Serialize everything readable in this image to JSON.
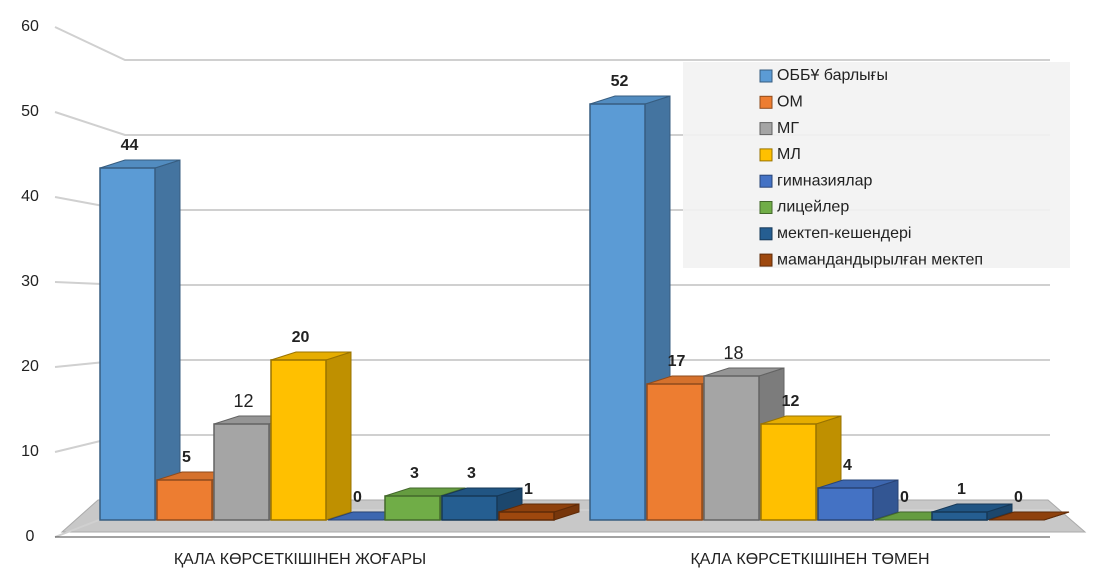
{
  "chart_data": {
    "type": "bar3d",
    "categories": [
      "ҚАЛА КӨРСЕТКІШІНЕН ЖОҒАРЫ",
      "ҚАЛА КӨРСЕТКІШІНЕН ТӨМЕН"
    ],
    "series": [
      {
        "name": "ОББҰ барлығы",
        "color": "#5b9bd5",
        "values": [
          44,
          52
        ]
      },
      {
        "name": "ОМ",
        "color": "#ed7d31",
        "values": [
          5,
          17
        ]
      },
      {
        "name": "МГ",
        "color": "#a5a5a5",
        "values": [
          12,
          18
        ]
      },
      {
        "name": "МЛ",
        "color": "#ffc000",
        "values": [
          20,
          12
        ]
      },
      {
        "name": "гимназиялар",
        "color": "#4472c4",
        "values": [
          0,
          4
        ]
      },
      {
        "name": "лицейлер",
        "color": "#70ad47",
        "values": [
          3,
          0
        ]
      },
      {
        "name": "мектеп-кешендері",
        "color": "#255e91",
        "values": [
          3,
          1
        ]
      },
      {
        "name": "мамандандырылған мектеп",
        "color": "#9e480e",
        "values": [
          1,
          0
        ]
      }
    ],
    "ylim": [
      0,
      60
    ],
    "yticks": [
      0,
      10,
      20,
      30,
      40,
      50,
      60
    ],
    "grid": true,
    "legend": "upper right"
  }
}
